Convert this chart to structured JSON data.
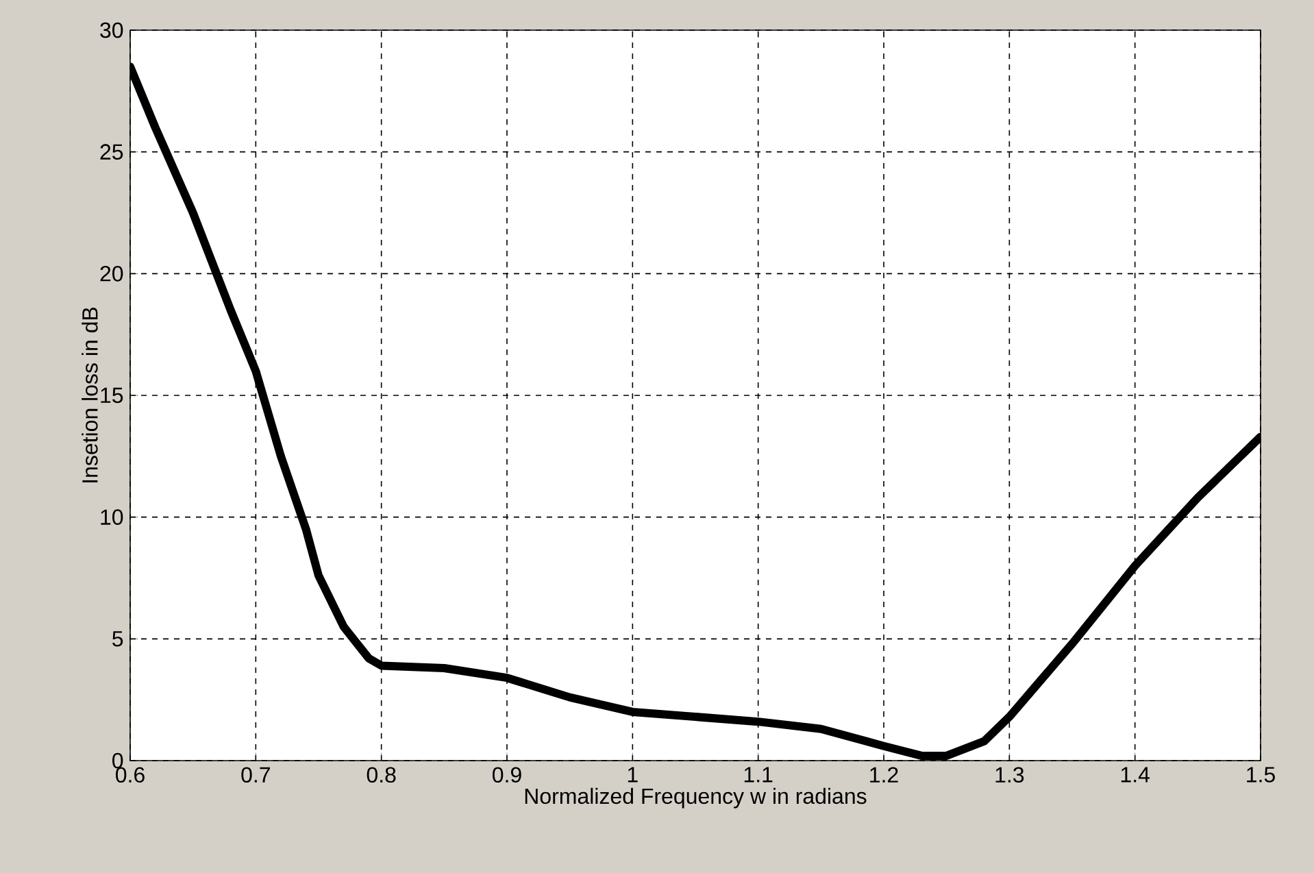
{
  "chart_data": {
    "type": "line",
    "xlabel": "Normalized Frequency w in radians",
    "ylabel": "Insetion loss in dB",
    "xlim": [
      0.6,
      1.5
    ],
    "ylim": [
      0,
      30
    ],
    "xticks": [
      0.6,
      0.7,
      0.8,
      0.9,
      1,
      1.1,
      1.2,
      1.3,
      1.4,
      1.5
    ],
    "yticks": [
      0,
      5,
      10,
      15,
      20,
      25,
      30
    ],
    "grid": true,
    "marker": "none",
    "line_style": "solid",
    "series": [
      {
        "color": "#000000",
        "x": [
          0.6,
          0.62,
          0.65,
          0.68,
          0.7,
          0.72,
          0.74,
          0.75,
          0.77,
          0.79,
          0.8,
          0.85,
          0.9,
          0.95,
          1.0,
          1.05,
          1.1,
          1.15,
          1.2,
          1.23,
          1.25,
          1.28,
          1.3,
          1.35,
          1.4,
          1.45,
          1.5
        ],
        "values": [
          28.5,
          26,
          22.5,
          18.5,
          16,
          12.5,
          9.5,
          7.6,
          5.5,
          4.2,
          3.9,
          3.8,
          3.4,
          2.6,
          2.0,
          1.8,
          1.6,
          1.3,
          0.6,
          0.2,
          0.2,
          0.8,
          1.8,
          4.8,
          8.0,
          10.8,
          13.3
        ]
      }
    ]
  }
}
